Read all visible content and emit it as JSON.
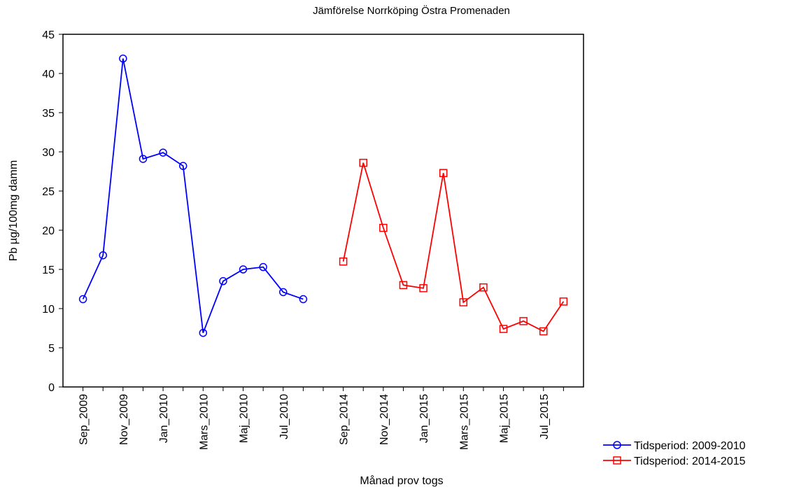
{
  "chart_data": {
    "type": "line",
    "title": "Jämförelse Norrköping Östra Promenaden",
    "x_label": "Månad prov togs",
    "y_label": "Pb  µg/100mg damm",
    "categories": [
      "Sep_2009",
      null,
      "Nov_2009",
      null,
      "Jan_2010",
      null,
      "Mars_2010",
      null,
      "Maj_2010",
      null,
      "Jul_2010",
      null,
      null,
      "Sep_2014",
      null,
      "Nov_2014",
      null,
      "Jan_2015",
      null,
      "Mars_2015",
      null,
      "Maj_2015",
      null,
      "Jul_2015",
      null
    ],
    "series": [
      {
        "name": "Tidsperiod: 2009-2010",
        "color": "#0000ff",
        "marker": "circle",
        "values": [
          11.2,
          16.8,
          41.9,
          29.1,
          29.9,
          28.2,
          6.9,
          13.5,
          15.0,
          15.3,
          12.1,
          11.2,
          null,
          null,
          null,
          null,
          null,
          null,
          null,
          null,
          null,
          null,
          null,
          null,
          null
        ]
      },
      {
        "name": "Tidsperiod: 2014-2015",
        "color": "#ff0000",
        "marker": "square",
        "values": [
          null,
          null,
          null,
          null,
          null,
          null,
          null,
          null,
          null,
          null,
          null,
          null,
          null,
          16.0,
          28.6,
          20.3,
          13.0,
          12.6,
          27.3,
          10.8,
          12.7,
          7.4,
          8.4,
          7.1,
          10.9
        ]
      }
    ],
    "ylim": [
      0,
      45
    ],
    "yticks": [
      0,
      5,
      10,
      15,
      20,
      25,
      30,
      35,
      40,
      45
    ],
    "grid": false,
    "legend": "lower-right"
  }
}
